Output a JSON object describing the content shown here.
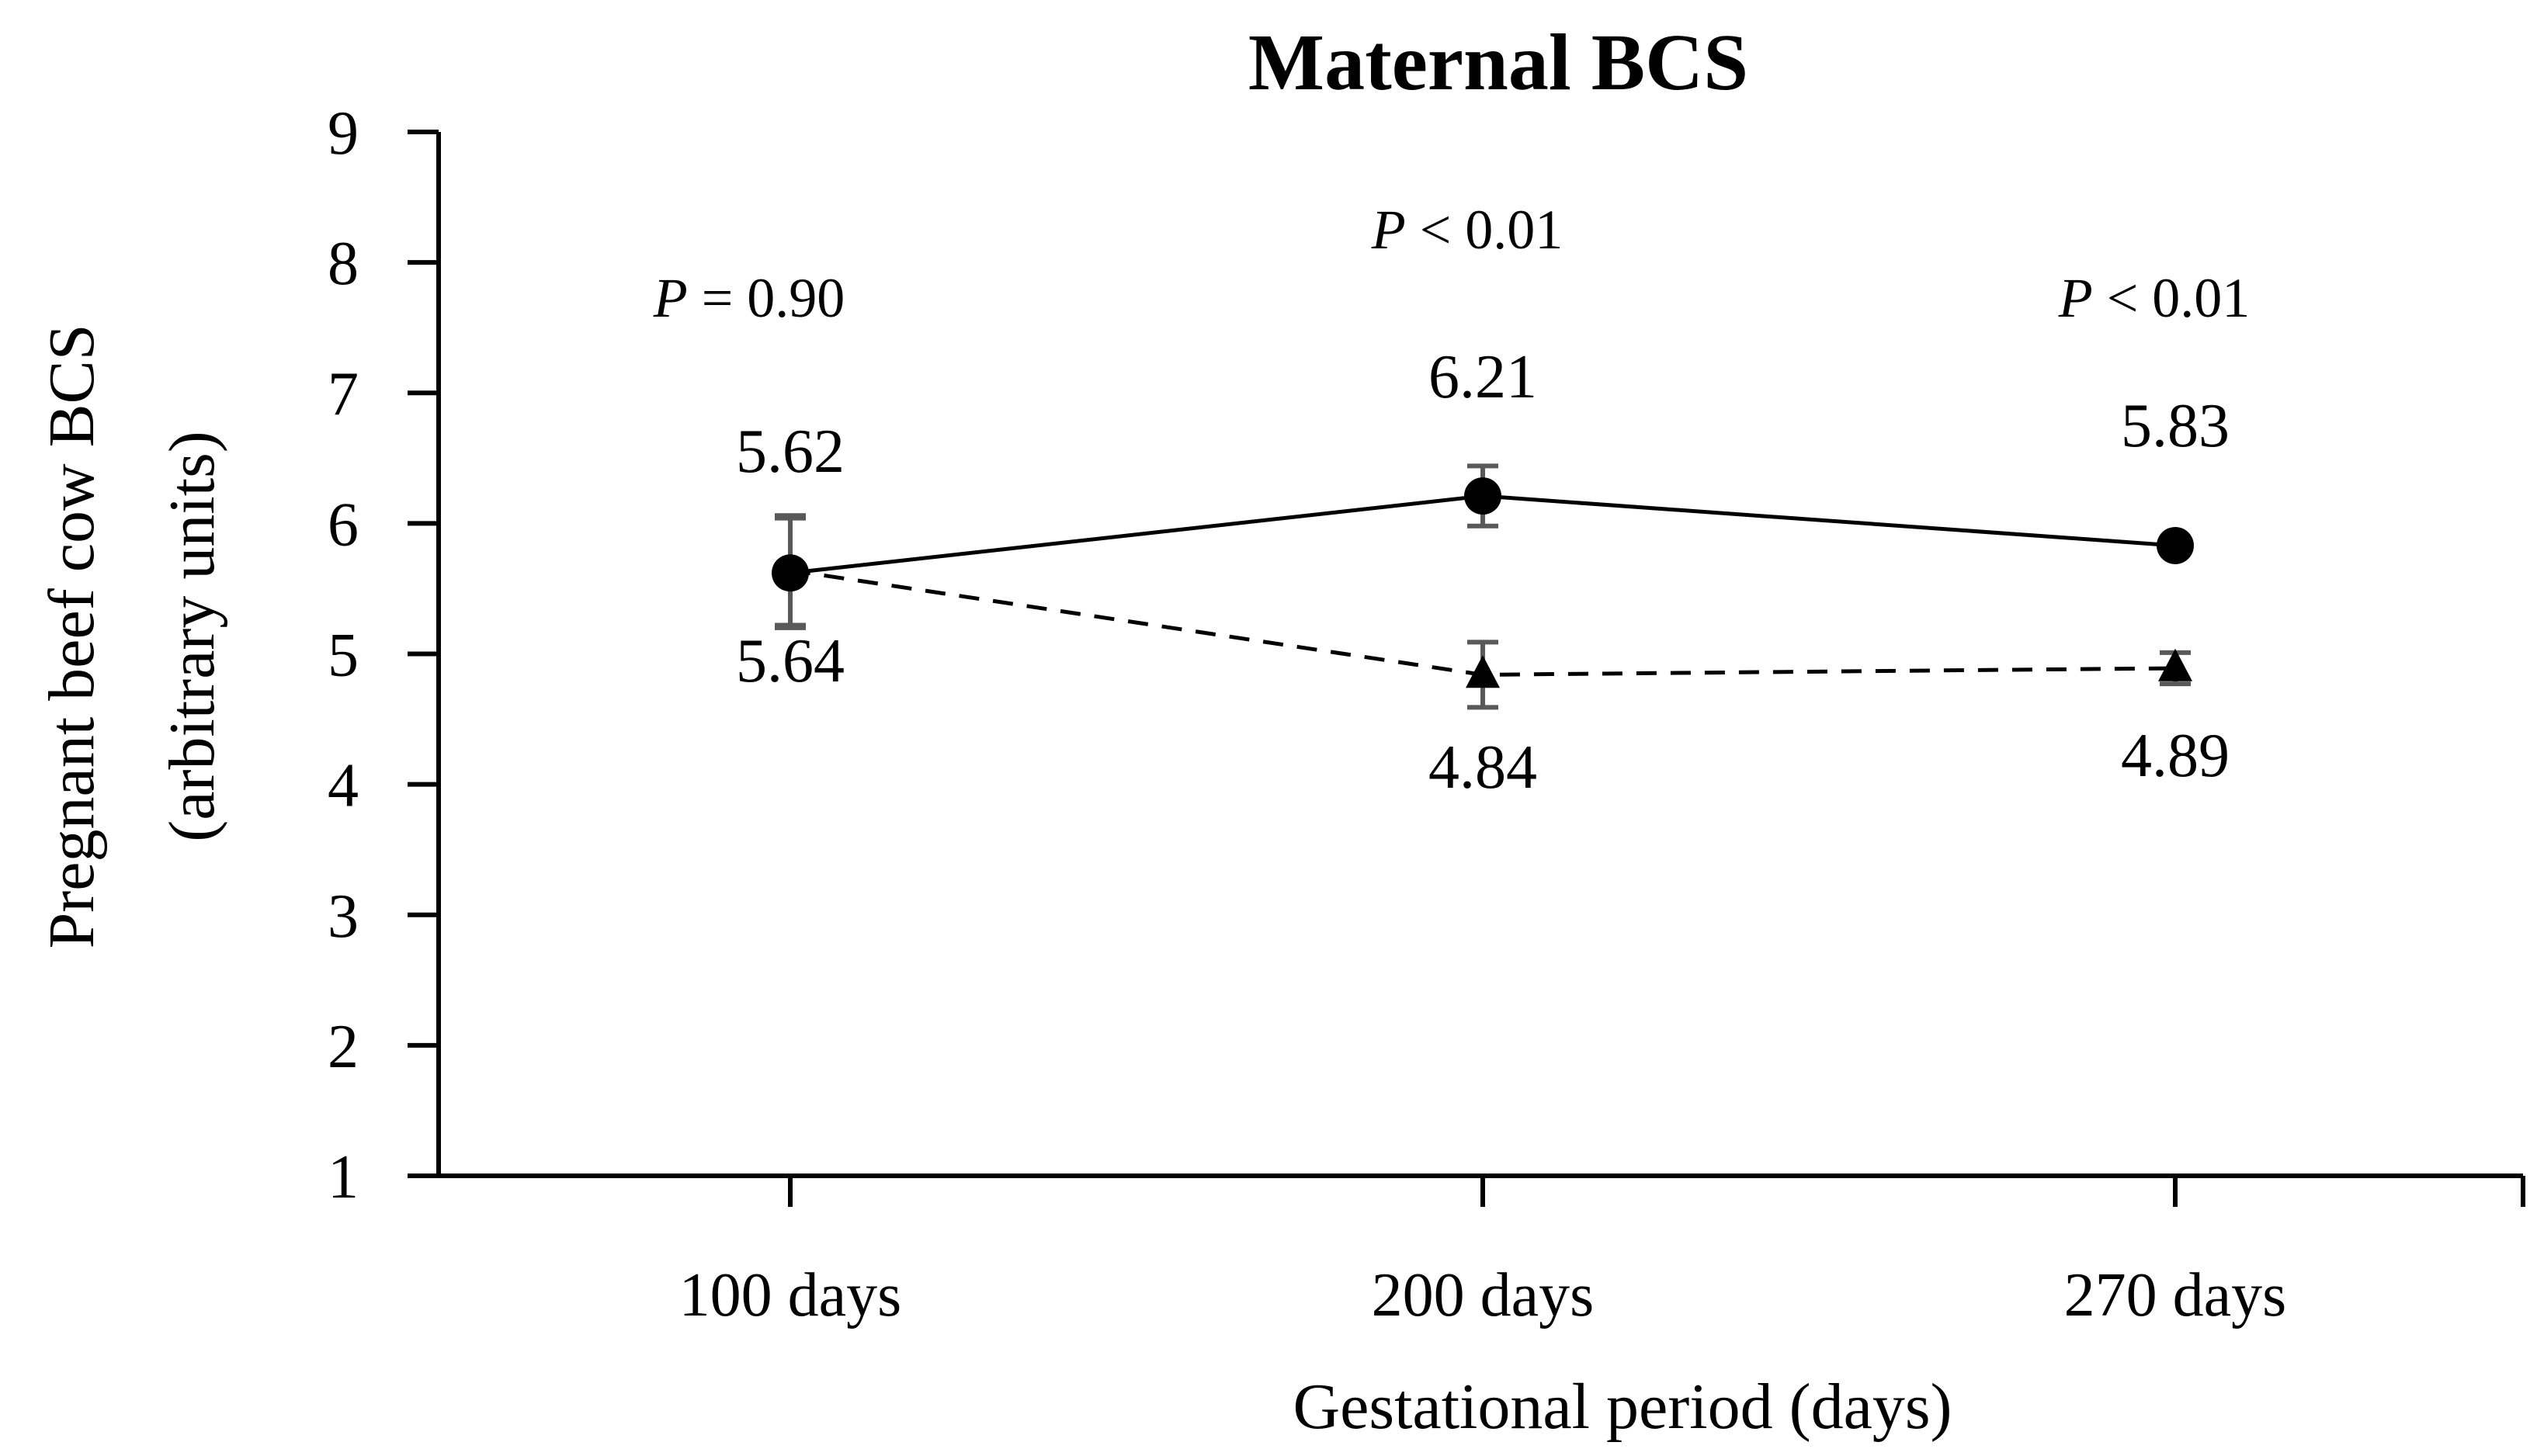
{
  "chart_data": {
    "type": "line",
    "title": "Maternal BCS",
    "xlabel": "Gestational period (days)",
    "ylabel_line1": "Pregnant beef cow BCS",
    "ylabel_line2": "(arbitrary units)",
    "categories": [
      "100 days",
      "200 days",
      "270 days"
    ],
    "ylim": [
      1,
      9
    ],
    "yticks": [
      "1",
      "2",
      "3",
      "4",
      "5",
      "6",
      "7",
      "8",
      "9"
    ],
    "grid": false,
    "series": [
      {
        "name": "circle-solid",
        "line_style": "solid",
        "marker": "circle",
        "values": [
          5.62,
          6.21,
          5.83
        ],
        "labels": [
          "5.62",
          "6.21",
          "5.83"
        ],
        "error": [
          0.42,
          0.23,
          0.05
        ]
      },
      {
        "name": "triangle-dashed",
        "line_style": "dashed",
        "marker": "triangle",
        "values": [
          5.64,
          4.84,
          4.89
        ],
        "labels": [
          "5.64",
          "4.84",
          "4.89"
        ],
        "error": [
          0.42,
          0.25,
          0.12
        ]
      }
    ],
    "p_values": [
      {
        "italic": "P",
        "rest": " = 0.90"
      },
      {
        "italic": "P",
        "rest": " < 0.01"
      },
      {
        "italic": "P",
        "rest": " < 0.01"
      }
    ],
    "colors": {
      "axis": "#000000",
      "line": "#000000",
      "error_bar": "#595959",
      "marker": "#000000"
    }
  }
}
